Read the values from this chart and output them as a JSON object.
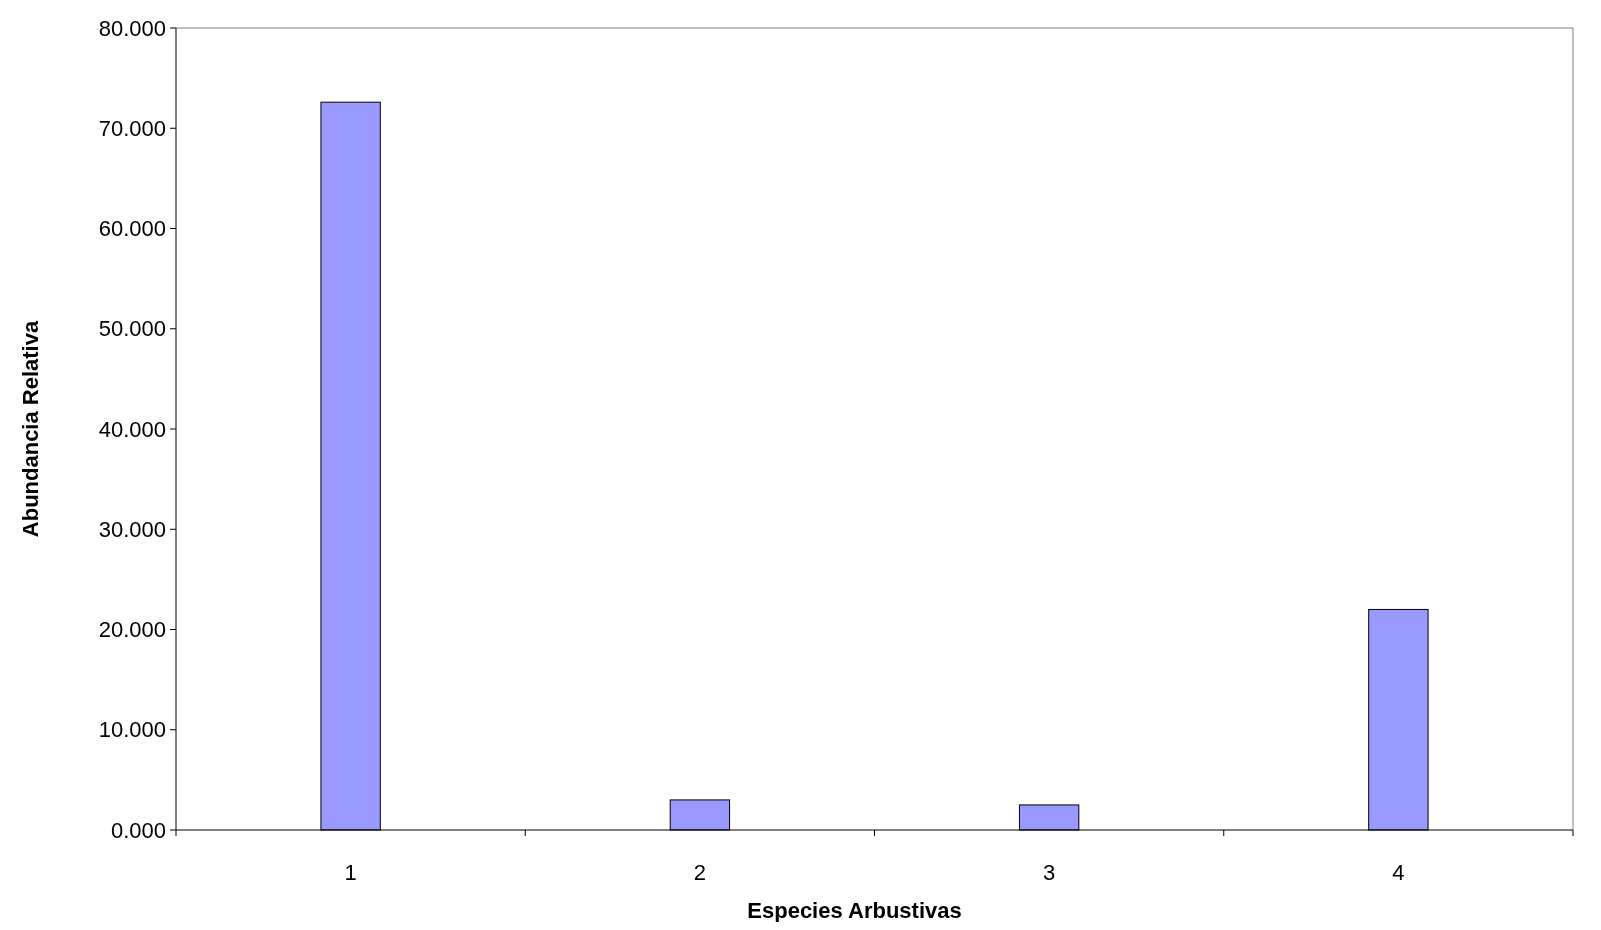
{
  "chart_data": {
    "type": "bar",
    "xlabel": "Especies Arbustivas",
    "ylabel": "Abundancia Relativa",
    "categories": [
      "1",
      "2",
      "3",
      "4"
    ],
    "values": [
      72.6,
      3.0,
      2.5,
      22.0
    ],
    "color": "#9999ff",
    "ylim": [
      0,
      80
    ],
    "yticks": [
      {
        "value": 0,
        "label": "0.000"
      },
      {
        "value": 10,
        "label": "10.000"
      },
      {
        "value": 20,
        "label": "20.000"
      },
      {
        "value": 30,
        "label": "30.000"
      },
      {
        "value": 40,
        "label": "40.000"
      },
      {
        "value": 50,
        "label": "50.000"
      },
      {
        "value": 60,
        "label": "60.000"
      },
      {
        "value": 70,
        "label": "70.000"
      },
      {
        "value": 80,
        "label": "80.000"
      }
    ],
    "grid": false
  }
}
